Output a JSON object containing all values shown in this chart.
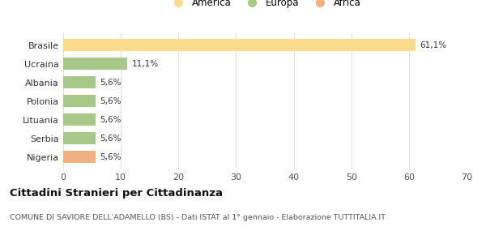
{
  "categories": [
    "Brasile",
    "Ucraina",
    "Albania",
    "Polonia",
    "Lituania",
    "Serbia",
    "Nigeria"
  ],
  "values": [
    61.1,
    11.1,
    5.6,
    5.6,
    5.6,
    5.6,
    5.6
  ],
  "labels": [
    "61,1%",
    "11,1%",
    "5,6%",
    "5,6%",
    "5,6%",
    "5,6%",
    "5,6%"
  ],
  "colors": [
    "#FADC8C",
    "#A8C888",
    "#A8C888",
    "#A8C888",
    "#A8C888",
    "#A8C888",
    "#F0B080"
  ],
  "legend_items": [
    {
      "label": "America",
      "color": "#FADC8C"
    },
    {
      "label": "Europa",
      "color": "#A8C888"
    },
    {
      "label": "Africa",
      "color": "#F0B080"
    }
  ],
  "xlim": [
    0,
    70
  ],
  "xticks": [
    0,
    10,
    20,
    30,
    40,
    50,
    60,
    70
  ],
  "title": "Cittadini Stranieri per Cittadinanza",
  "subtitle": "COMUNE DI SAVIORE DELL'ADAMELLO (BS) - Dati ISTAT al 1° gennaio - Elaborazione TUTTITALIA.IT",
  "bg_color": "#FFFFFF",
  "grid_color": "#E0E0E0",
  "label_color": "#555555",
  "text_color": "#333333"
}
